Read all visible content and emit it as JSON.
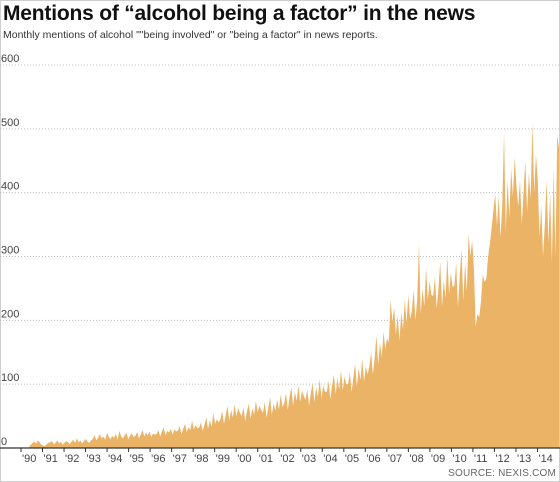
{
  "header": {
    "title": "Mentions of “alcohol being a factor” in the news",
    "subtitle": "Monthly mentions of alcohol \"\"being involved\" or \"being a factor\" in news reports."
  },
  "footer": {
    "source": "SOURCE: NEXIS.COM"
  },
  "colors": {
    "area_fill": "#ebb366",
    "grid": "#bbbbbb",
    "baseline": "#333333",
    "text": "#222222"
  },
  "chart_data": {
    "type": "area",
    "title": "Mentions of “alcohol being a factor” in the news",
    "subtitle": "Monthly mentions of alcohol \"\"being involved\" or \"being a factor\" in news reports.",
    "xlabel": "",
    "ylabel": "",
    "ylim": [
      0,
      600
    ],
    "y_ticks": [
      0,
      100,
      200,
      300,
      400,
      500,
      600
    ],
    "y_tick_labels": [
      "0",
      "100",
      "200",
      "300",
      "400",
      "500",
      "600"
    ],
    "x_tick_labels": [
      "'90",
      "'91",
      "'92",
      "'93",
      "'94",
      "'95",
      "'96",
      "'97",
      "'98",
      "'99",
      "'00",
      "'01",
      "'02",
      "'03",
      "'04",
      "'05",
      "'06",
      "'07",
      "'08",
      "'09",
      "'10",
      "'11",
      "'12",
      "'13",
      "'14"
    ],
    "grid": true,
    "legend": "none",
    "series": [
      {
        "values": [
          2,
          5,
          8,
          10,
          7,
          12,
          9,
          5,
          4,
          3,
          6,
          8,
          9,
          11,
          6,
          8,
          12,
          7,
          10,
          5,
          8,
          11,
          9,
          6,
          10,
          13,
          8,
          15,
          9,
          12,
          7,
          11,
          14,
          10,
          8,
          12,
          14,
          20,
          12,
          16,
          22,
          15,
          18,
          13,
          24,
          17,
          14,
          19,
          16,
          22,
          13,
          27,
          18,
          15,
          20,
          24,
          14,
          19,
          23,
          17,
          19,
          25,
          15,
          21,
          28,
          18,
          24,
          20,
          26,
          17,
          23,
          21,
          22,
          28,
          18,
          26,
          32,
          20,
          27,
          24,
          30,
          21,
          29,
          26,
          27,
          34,
          22,
          30,
          38,
          25,
          33,
          28,
          43,
          29,
          36,
          31,
          32,
          40,
          27,
          36,
          48,
          30,
          44,
          33,
          55,
          38,
          45,
          40,
          45,
          58,
          38,
          52,
          66,
          42,
          60,
          48,
          68,
          50,
          62,
          55,
          50,
          64,
          42,
          58,
          70,
          46,
          62,
          52,
          74,
          56,
          66,
          60,
          55,
          72,
          48,
          62,
          80,
          52,
          70,
          58,
          76,
          60,
          84,
          64,
          70,
          86,
          60,
          80,
          95,
          66,
          88,
          74,
          98,
          72,
          90,
          82,
          75,
          92,
          66,
          86,
          102,
          72,
          95,
          80,
          108,
          78,
          98,
          88,
          88,
          105,
          76,
          98,
          115,
          84,
          110,
          92,
          122,
          90,
          112,
          100,
          100,
          118,
          88,
          110,
          132,
          96,
          125,
          106,
          140,
          104,
          128,
          115,
          128,
          150,
          115,
          140,
          176,
          130,
          165,
          142,
          182,
          155,
          172,
          165,
          232,
          198,
          220,
          178,
          208,
          168,
          212,
          186,
          232,
          196,
          240,
          202,
          215,
          248,
          200,
          232,
          320,
          210,
          250,
          222,
          282,
          232,
          262,
          240,
          238,
          268,
          218,
          250,
          292,
          222,
          262,
          235,
          300,
          240,
          275,
          252,
          255,
          290,
          220,
          270,
          312,
          230,
          290,
          245,
          335,
          300,
          325,
          282,
          190,
          210,
          205,
          230,
          272,
          260,
          265,
          300,
          320,
          345,
          372,
          398,
          348,
          395,
          330,
          380,
          495,
          340,
          420,
          360,
          438,
          395,
          455,
          410,
          378,
          420,
          350,
          400,
          450,
          370,
          430,
          390,
          510,
          400,
          460,
          420,
          330,
          380,
          300,
          350,
          420,
          320,
          400,
          290,
          440,
          300,
          490,
          470
        ]
      }
    ]
  }
}
